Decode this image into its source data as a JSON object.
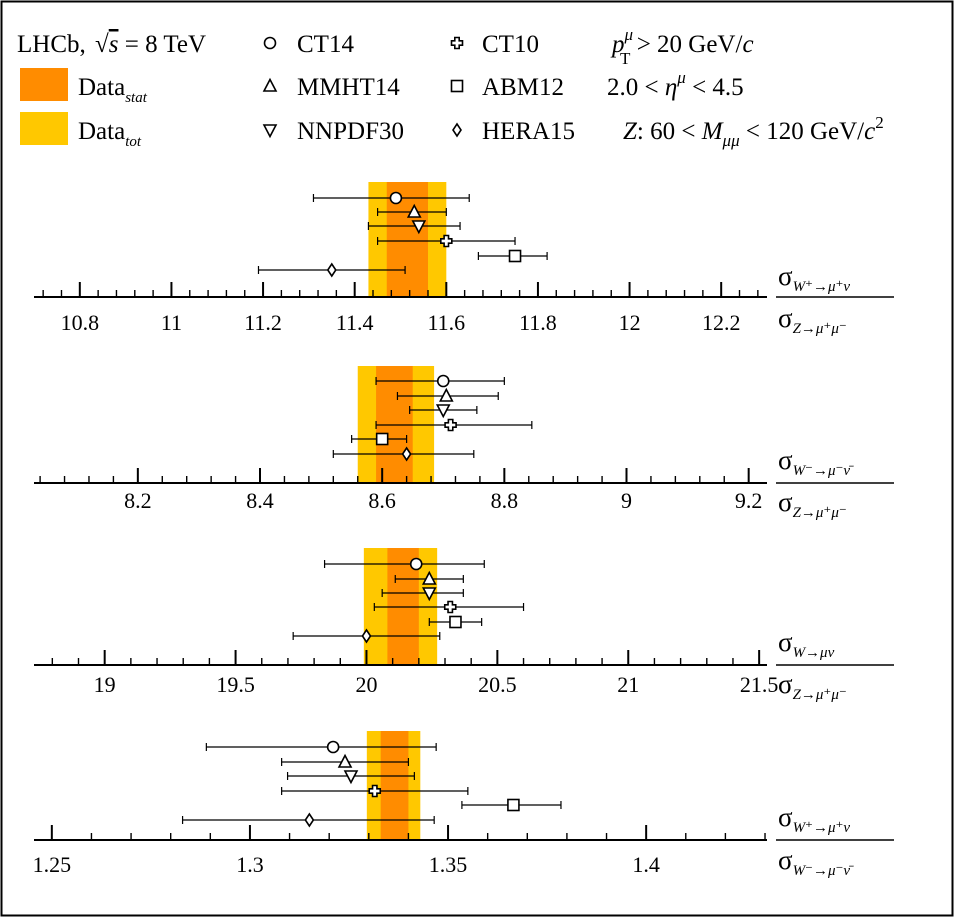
{
  "colors": {
    "stat": "#ff8c00",
    "tot": "#ffc800",
    "ink": "#000000"
  },
  "legend": {
    "experiment": "LHCb,",
    "energy_parts": [
      "√",
      "s",
      " = 8 TeV"
    ],
    "data_stat": [
      "Data",
      "stat"
    ],
    "data_tot": [
      "Data",
      "tot"
    ],
    "pdfs": [
      {
        "name": "CT14",
        "marker": "circle"
      },
      {
        "name": "MMHT14",
        "marker": "triangle-up"
      },
      {
        "name": "NNPDF30",
        "marker": "triangle-down"
      },
      {
        "name": "CT10",
        "marker": "cross"
      },
      {
        "name": "ABM12",
        "marker": "square"
      },
      {
        "name": "HERA15",
        "marker": "diamond"
      }
    ],
    "cuts": {
      "pt": [
        "p",
        "μ",
        "T",
        " > 20 GeV/",
        "c"
      ],
      "eta": [
        "2.0 < ",
        "η",
        "μ",
        " < 4.5"
      ],
      "z": [
        "Z",
        ": 60 < ",
        "M",
        "μμ",
        " < 120 GeV/",
        "c",
        "2"
      ]
    }
  },
  "chart_data": [
    {
      "type": "scatter",
      "label": {
        "num": [
          "σ",
          "W⁺→μ⁺ν"
        ],
        "den": [
          "σ",
          "Z→μ⁺μ⁻"
        ]
      },
      "xlim": [
        10.7,
        12.3
      ],
      "ticks": [
        "10.8",
        "11",
        "11.2",
        "11.4",
        "11.6",
        "11.8",
        "12",
        "12.2"
      ],
      "data_stat": [
        11.47,
        11.56
      ],
      "data_tot": [
        11.43,
        11.6
      ],
      "points": [
        {
          "pdf": "CT14",
          "value": 11.49,
          "err_low": 11.31,
          "err_high": 11.65
        },
        {
          "pdf": "MMHT14",
          "value": 11.53,
          "err_low": 11.45,
          "err_high": 11.6
        },
        {
          "pdf": "NNPDF30",
          "value": 11.54,
          "err_low": 11.43,
          "err_high": 11.63
        },
        {
          "pdf": "CT10",
          "value": 11.6,
          "err_low": 11.45,
          "err_high": 11.75
        },
        {
          "pdf": "ABM12",
          "value": 11.75,
          "err_low": 11.67,
          "err_high": 11.82
        },
        {
          "pdf": "HERA15",
          "value": 11.35,
          "err_low": 11.19,
          "err_high": 11.51
        }
      ]
    },
    {
      "type": "scatter",
      "label": {
        "num": [
          "σ",
          "W⁻→μ⁻ν̄"
        ],
        "den": [
          "σ",
          "Z→μ⁺μ⁻"
        ]
      },
      "xlim": [
        8.03,
        9.23
      ],
      "ticks": [
        "8.2",
        "8.4",
        "8.6",
        "8.8",
        "9",
        "9.2"
      ],
      "data_stat": [
        8.59,
        8.65
      ],
      "data_tot": [
        8.56,
        8.685
      ],
      "points": [
        {
          "pdf": "CT14",
          "value": 8.7,
          "err_low": 8.59,
          "err_high": 8.8
        },
        {
          "pdf": "MMHT14",
          "value": 8.705,
          "err_low": 8.625,
          "err_high": 8.79
        },
        {
          "pdf": "NNPDF30",
          "value": 8.7,
          "err_low": 8.645,
          "err_high": 8.755
        },
        {
          "pdf": "CT10",
          "value": 8.712,
          "err_low": 8.59,
          "err_high": 8.845
        },
        {
          "pdf": "ABM12",
          "value": 8.6,
          "err_low": 8.55,
          "err_high": 8.64
        },
        {
          "pdf": "HERA15",
          "value": 8.64,
          "err_low": 8.52,
          "err_high": 8.75
        }
      ]
    },
    {
      "type": "scatter",
      "label": {
        "num": [
          "σ",
          "W→μν"
        ],
        "den": [
          "σ",
          "Z→μ⁺μ⁻"
        ]
      },
      "xlim": [
        18.73,
        21.53
      ],
      "ticks": [
        "19",
        "19.5",
        "20",
        "20.5",
        "21",
        "21.5"
      ],
      "data_stat": [
        20.08,
        20.2
      ],
      "data_tot": [
        19.99,
        20.27
      ],
      "points": [
        {
          "pdf": "CT14",
          "value": 20.19,
          "err_low": 19.84,
          "err_high": 20.45
        },
        {
          "pdf": "MMHT14",
          "value": 20.24,
          "err_low": 20.11,
          "err_high": 20.37
        },
        {
          "pdf": "NNPDF30",
          "value": 20.24,
          "err_low": 20.06,
          "err_high": 20.37
        },
        {
          "pdf": "CT10",
          "value": 20.32,
          "err_low": 20.03,
          "err_high": 20.6
        },
        {
          "pdf": "ABM12",
          "value": 20.34,
          "err_low": 20.24,
          "err_high": 20.44
        },
        {
          "pdf": "HERA15",
          "value": 20.0,
          "err_low": 19.72,
          "err_high": 20.28
        }
      ]
    },
    {
      "type": "scatter",
      "label": {
        "num": [
          "σ",
          "W⁺→μ⁺ν"
        ],
        "den": [
          "σ",
          "W⁻→μ⁻ν̄"
        ]
      },
      "xlim": [
        1.2455,
        1.4305
      ],
      "ticks": [
        "1.25",
        "1.3",
        "1.35",
        "1.4"
      ],
      "data_stat": [
        1.333,
        1.34
      ],
      "data_tot": [
        1.3295,
        1.343
      ],
      "points": [
        {
          "pdf": "CT14",
          "value": 1.321,
          "err_low": 1.289,
          "err_high": 1.347
        },
        {
          "pdf": "MMHT14",
          "value": 1.324,
          "err_low": 1.308,
          "err_high": 1.34
        },
        {
          "pdf": "NNPDF30",
          "value": 1.3255,
          "err_low": 1.3095,
          "err_high": 1.3415
        },
        {
          "pdf": "CT10",
          "value": 1.3315,
          "err_low": 1.308,
          "err_high": 1.355
        },
        {
          "pdf": "ABM12",
          "value": 1.3665,
          "err_low": 1.3535,
          "err_high": 1.3785
        },
        {
          "pdf": "HERA15",
          "value": 1.315,
          "err_low": 1.283,
          "err_high": 1.3465
        }
      ]
    }
  ]
}
